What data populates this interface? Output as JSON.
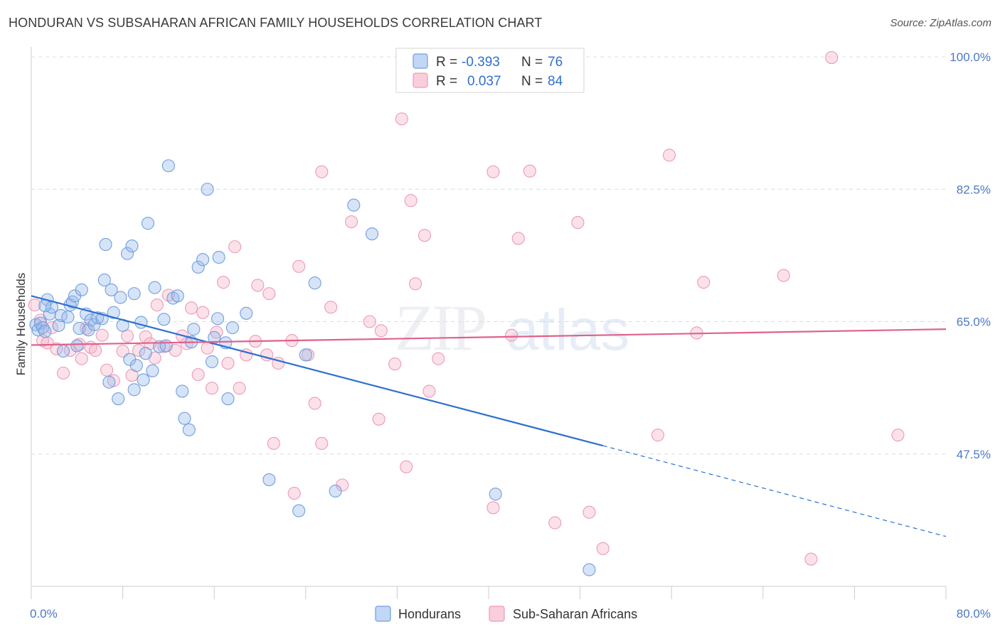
{
  "title": "HONDURAN VS SUBSAHARAN AFRICAN FAMILY HOUSEHOLDS CORRELATION CHART",
  "source": "Source: ZipAtlas.com",
  "watermark": "ZIPatlas",
  "colors": {
    "hondurans": "#6f9fe0",
    "subsaharan": "#ee9ab5",
    "hond_line": "#2e6fd0",
    "sub_line": "#e0628c",
    "label": "#4b78c8"
  },
  "legend": {
    "rows": [
      {
        "r_label": "R =",
        "r_value": "-0.393",
        "n_label": "N =",
        "n_value": "76"
      },
      {
        "r_label": "R =",
        "r_value": "0.037",
        "n_label": "N =",
        "n_value": "84"
      }
    ]
  },
  "chart_data": {
    "type": "scatter",
    "title": "HONDURAN VS SUBSAHARAN AFRICAN FAMILY HOUSEHOLDS CORRELATION CHART",
    "xlabel": "",
    "ylabel": "Family Households",
    "xlim": [
      0,
      80
    ],
    "ylim": [
      30,
      100
    ],
    "x_tick_labels": [
      "0.0%",
      "80.0%"
    ],
    "y_ticks": [
      47.5,
      65.0,
      82.5,
      100.0
    ],
    "y_tick_labels": [
      "47.5%",
      "65.0%",
      "82.5%",
      "100.0%"
    ],
    "grid": true,
    "legend_position": "bottom-center",
    "series": [
      {
        "name": "Hondurans",
        "points": [
          [
            0.4,
            64.6
          ],
          [
            0.6,
            63.9
          ],
          [
            0.8,
            64.8
          ],
          [
            1.0,
            64.2
          ],
          [
            1.2,
            63.7
          ],
          [
            1.4,
            67.9
          ],
          [
            1.6,
            66.0
          ],
          [
            1.8,
            66.9
          ],
          [
            2.4,
            64.5
          ],
          [
            2.6,
            65.8
          ],
          [
            2.8,
            61.1
          ],
          [
            3.2,
            65.6
          ],
          [
            3.4,
            67.2
          ],
          [
            3.6,
            67.6
          ],
          [
            3.8,
            68.4
          ],
          [
            4.0,
            61.8
          ],
          [
            4.2,
            64.1
          ],
          [
            4.4,
            69.2
          ],
          [
            4.8,
            66.0
          ],
          [
            5.0,
            63.9
          ],
          [
            5.2,
            65.2
          ],
          [
            5.5,
            64.6
          ],
          [
            5.8,
            65.5
          ],
          [
            6.2,
            65.4
          ],
          [
            6.4,
            70.5
          ],
          [
            6.5,
            75.2
          ],
          [
            6.8,
            57.0
          ],
          [
            7.0,
            69.2
          ],
          [
            7.2,
            66.2
          ],
          [
            7.6,
            54.8
          ],
          [
            7.8,
            68.2
          ],
          [
            8.0,
            64.5
          ],
          [
            8.4,
            74.0
          ],
          [
            8.6,
            60.0
          ],
          [
            8.8,
            75.0
          ],
          [
            9.0,
            68.7
          ],
          [
            9.2,
            59.2
          ],
          [
            9.6,
            64.9
          ],
          [
            9.8,
            57.3
          ],
          [
            10.0,
            60.8
          ],
          [
            10.2,
            78.0
          ],
          [
            10.6,
            58.5
          ],
          [
            10.8,
            69.5
          ],
          [
            11.2,
            61.7
          ],
          [
            11.6,
            65.3
          ],
          [
            11.8,
            61.8
          ],
          [
            12.0,
            85.6
          ],
          [
            12.4,
            68.1
          ],
          [
            12.8,
            68.4
          ],
          [
            13.2,
            55.8
          ],
          [
            13.4,
            52.2
          ],
          [
            13.8,
            50.7
          ],
          [
            14.0,
            62.3
          ],
          [
            14.2,
            64.0
          ],
          [
            14.6,
            72.2
          ],
          [
            15.0,
            73.2
          ],
          [
            15.4,
            82.5
          ],
          [
            15.8,
            59.7
          ],
          [
            16.0,
            62.9
          ],
          [
            16.3,
            65.4
          ],
          [
            16.4,
            73.5
          ],
          [
            17.0,
            62.2
          ],
          [
            17.2,
            54.8
          ],
          [
            17.6,
            64.2
          ],
          [
            18.8,
            66.1
          ],
          [
            20.8,
            44.1
          ],
          [
            23.4,
            40.0
          ],
          [
            24.8,
            70.1
          ],
          [
            24.0,
            60.6
          ],
          [
            26.6,
            42.6
          ],
          [
            28.2,
            80.4
          ],
          [
            29.8,
            76.6
          ],
          [
            40.6,
            42.2
          ],
          [
            48.8,
            32.2
          ],
          [
            1.2,
            67.1
          ],
          [
            9.0,
            56.0
          ]
        ]
      },
      {
        "name": "Sub-Saharan Africans",
        "points": [
          [
            0.3,
            67.2
          ],
          [
            0.8,
            65.2
          ],
          [
            1.0,
            62.5
          ],
          [
            1.4,
            62.2
          ],
          [
            1.8,
            64.2
          ],
          [
            2.2,
            61.4
          ],
          [
            2.8,
            58.2
          ],
          [
            3.4,
            61.2
          ],
          [
            4.2,
            62.0
          ],
          [
            4.4,
            60.1
          ],
          [
            4.8,
            64.1
          ],
          [
            5.2,
            61.6
          ],
          [
            5.6,
            61.2
          ],
          [
            6.2,
            63.2
          ],
          [
            6.6,
            58.6
          ],
          [
            7.2,
            57.2
          ],
          [
            8.0,
            61.1
          ],
          [
            8.4,
            63.1
          ],
          [
            8.8,
            57.9
          ],
          [
            9.4,
            61.2
          ],
          [
            10.0,
            63.0
          ],
          [
            10.4,
            62.1
          ],
          [
            10.8,
            60.2
          ],
          [
            11.0,
            67.2
          ],
          [
            11.6,
            61.7
          ],
          [
            12.0,
            68.5
          ],
          [
            12.6,
            61.2
          ],
          [
            13.2,
            63.1
          ],
          [
            13.6,
            62.1
          ],
          [
            14.0,
            66.8
          ],
          [
            14.6,
            58.0
          ],
          [
            15.0,
            66.2
          ],
          [
            15.4,
            61.5
          ],
          [
            15.8,
            56.2
          ],
          [
            16.2,
            63.6
          ],
          [
            16.8,
            70.2
          ],
          [
            17.2,
            59.5
          ],
          [
            17.8,
            74.9
          ],
          [
            18.2,
            56.2
          ],
          [
            18.8,
            60.6
          ],
          [
            19.6,
            62.4
          ],
          [
            19.8,
            69.8
          ],
          [
            20.6,
            60.6
          ],
          [
            20.8,
            68.7
          ],
          [
            21.2,
            48.9
          ],
          [
            21.6,
            59.5
          ],
          [
            22.8,
            62.5
          ],
          [
            23.0,
            42.3
          ],
          [
            23.4,
            72.3
          ],
          [
            24.2,
            60.6
          ],
          [
            24.8,
            54.2
          ],
          [
            25.4,
            84.8
          ],
          [
            25.4,
            48.9
          ],
          [
            26.2,
            66.9
          ],
          [
            27.2,
            43.4
          ],
          [
            28.0,
            78.2
          ],
          [
            29.6,
            65.0
          ],
          [
            30.4,
            52.1
          ],
          [
            30.6,
            63.8
          ],
          [
            31.8,
            59.4
          ],
          [
            32.4,
            91.8
          ],
          [
            32.8,
            45.8
          ],
          [
            33.2,
            81.0
          ],
          [
            33.6,
            70.0
          ],
          [
            34.4,
            76.4
          ],
          [
            34.8,
            55.8
          ],
          [
            35.6,
            60.1
          ],
          [
            40.4,
            84.8
          ],
          [
            40.4,
            40.4
          ],
          [
            42.0,
            63.2
          ],
          [
            42.6,
            76.0
          ],
          [
            43.6,
            84.9
          ],
          [
            45.8,
            38.4
          ],
          [
            47.8,
            78.1
          ],
          [
            48.8,
            39.8
          ],
          [
            50.0,
            35.0
          ],
          [
            54.8,
            50.0
          ],
          [
            55.8,
            87.0
          ],
          [
            58.2,
            63.5
          ],
          [
            58.8,
            70.2
          ],
          [
            65.8,
            71.1
          ],
          [
            68.2,
            33.6
          ],
          [
            70.0,
            99.9
          ],
          [
            75.8,
            50.0
          ]
        ]
      }
    ],
    "trend_lines": [
      {
        "series": "Hondurans",
        "solid": [
          [
            0,
            68.4
          ],
          [
            50,
            48.6
          ]
        ],
        "dashed_to": [
          80,
          36.6
        ]
      },
      {
        "series": "Sub-Saharan Africans",
        "solid": [
          [
            0,
            61.9
          ],
          [
            80,
            64.0
          ]
        ]
      }
    ]
  },
  "bottom_legend": {
    "items": [
      {
        "label": "Hondurans"
      },
      {
        "label": "Sub-Saharan Africans"
      }
    ]
  }
}
